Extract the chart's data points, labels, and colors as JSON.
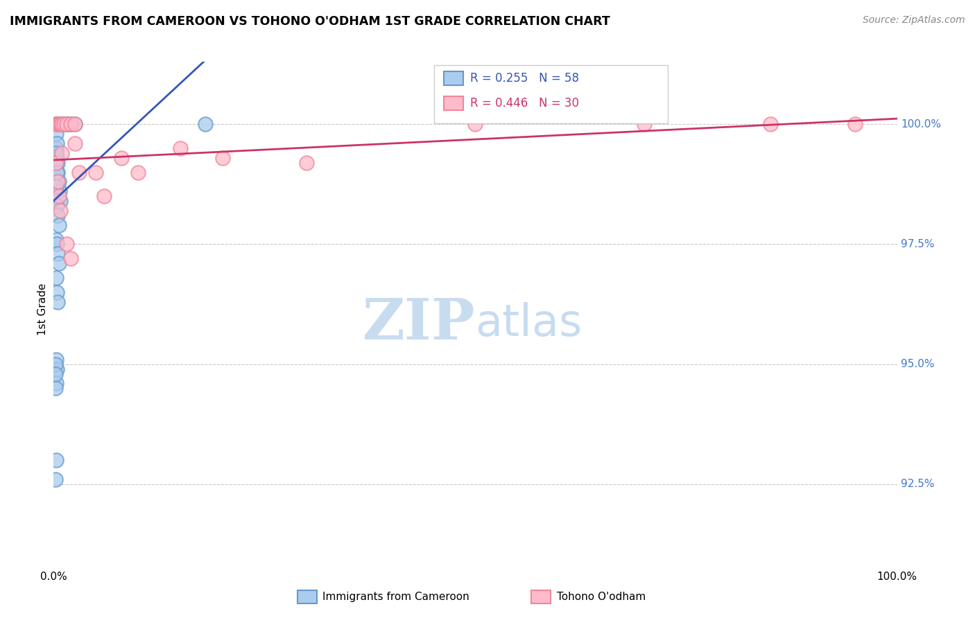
{
  "title": "IMMIGRANTS FROM CAMEROON VS TOHONO O'ODHAM 1ST GRADE CORRELATION CHART",
  "source": "Source: ZipAtlas.com",
  "ylabel": "1st Grade",
  "y_ticks": [
    92.5,
    95.0,
    97.5,
    100.0
  ],
  "y_tick_labels": [
    "92.5%",
    "95.0%",
    "97.5%",
    "100.0%"
  ],
  "xlim": [
    0.0,
    1.0
  ],
  "ylim": [
    91.0,
    101.3
  ],
  "legend_R_blue": "0.255",
  "legend_N_blue": "58",
  "legend_R_pink": "0.446",
  "legend_N_pink": "30",
  "legend_label_blue": "Immigrants from Cameroon",
  "legend_label_pink": "Tohono O'odham",
  "blue_face": "#AACCEE",
  "blue_edge": "#6699CC",
  "pink_face": "#FFBBCC",
  "pink_edge": "#EE8899",
  "blue_line": "#3355BB",
  "pink_line": "#CC3366",
  "watermark_color": "#C8DCF0",
  "grid_color": "#BBBBBB",
  "right_label_color": "#4477CC",
  "blue_x": [
    0.003,
    0.004,
    0.004,
    0.005,
    0.005,
    0.005,
    0.006,
    0.006,
    0.006,
    0.007,
    0.007,
    0.007,
    0.008,
    0.008,
    0.009,
    0.009,
    0.01,
    0.01,
    0.011,
    0.012,
    0.013,
    0.015,
    0.016,
    0.018,
    0.02,
    0.025,
    0.003,
    0.004,
    0.005,
    0.005,
    0.006,
    0.007,
    0.008,
    0.003,
    0.004,
    0.005,
    0.006,
    0.003,
    0.004,
    0.005,
    0.006,
    0.003,
    0.004,
    0.005,
    0.003,
    0.004,
    0.003,
    0.003,
    0.004,
    0.003,
    0.004,
    0.003,
    0.003,
    0.002,
    0.002,
    0.002,
    0.002,
    0.18
  ],
  "blue_y": [
    100.0,
    100.0,
    100.0,
    100.0,
    100.0,
    100.0,
    100.0,
    100.0,
    100.0,
    100.0,
    100.0,
    100.0,
    100.0,
    100.0,
    100.0,
    100.0,
    100.0,
    100.0,
    100.0,
    100.0,
    100.0,
    100.0,
    100.0,
    100.0,
    100.0,
    100.0,
    99.5,
    99.3,
    99.2,
    99.0,
    98.8,
    98.6,
    98.4,
    98.7,
    98.3,
    98.1,
    97.9,
    97.6,
    97.5,
    97.3,
    97.1,
    96.8,
    96.5,
    96.3,
    99.8,
    99.6,
    99.4,
    99.2,
    99.0,
    95.1,
    94.9,
    94.6,
    93.0,
    95.0,
    94.5,
    94.8,
    92.6,
    100.0
  ],
  "pink_x": [
    0.003,
    0.005,
    0.006,
    0.007,
    0.009,
    0.01,
    0.012,
    0.015,
    0.02,
    0.025,
    0.003,
    0.005,
    0.006,
    0.008,
    0.01,
    0.015,
    0.02,
    0.025,
    0.03,
    0.05,
    0.06,
    0.08,
    0.1,
    0.15,
    0.2,
    0.3,
    0.5,
    0.7,
    0.85,
    0.95
  ],
  "pink_y": [
    100.0,
    100.0,
    100.0,
    100.0,
    100.0,
    100.0,
    100.0,
    100.0,
    100.0,
    100.0,
    99.2,
    98.8,
    98.5,
    98.2,
    99.4,
    97.5,
    97.2,
    99.6,
    99.0,
    99.0,
    98.5,
    99.3,
    99.0,
    99.5,
    99.3,
    99.2,
    100.0,
    100.0,
    100.0,
    100.0
  ]
}
